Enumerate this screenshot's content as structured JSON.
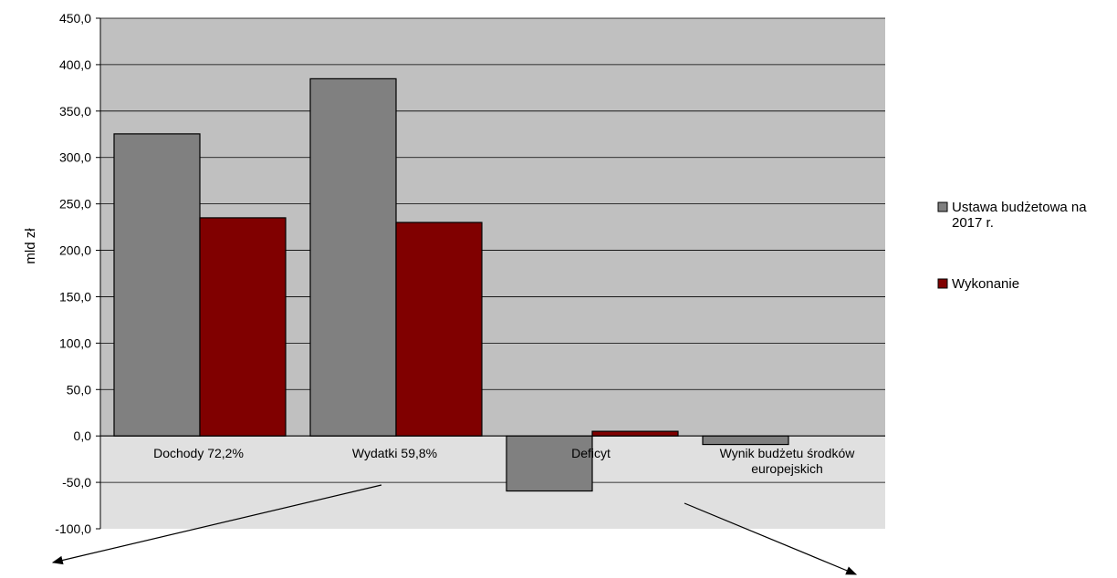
{
  "chart_data": {
    "type": "bar",
    "ylabel": "mld zł",
    "ylim": [
      -100,
      450
    ],
    "ytick_step": 50,
    "yticks": [
      "450,0",
      "400,0",
      "350,0",
      "300,0",
      "250,0",
      "200,0",
      "150,0",
      "100,0",
      "50,0",
      "0,0",
      "-50,0",
      "-100,0"
    ],
    "categories": [
      "Dochody 72,2%",
      "Wydatki 59,8%",
      "Deficyt",
      "Wynik budżetu środków europejskich"
    ],
    "category_label_lines": [
      [
        "Dochody 72,2%"
      ],
      [
        "Wydatki 59,8%"
      ],
      [
        "Deficyt"
      ],
      [
        "Wynik budżetu środków",
        "europejskich"
      ]
    ],
    "series": [
      {
        "name": "Ustawa budżetowa na 2017 r.",
        "legend_lines": [
          "Ustawa budżetowa na",
          "2017 r."
        ],
        "color": "#808080",
        "values": [
          325.4,
          384.8,
          -59.3,
          -9.2
        ]
      },
      {
        "name": "Wykonanie",
        "legend_lines": [
          "Wykonanie"
        ],
        "color": "#800000",
        "values": [
          235.0,
          230.0,
          5.0,
          0
        ]
      }
    ],
    "grid": true,
    "legend_position": "right",
    "plot_background_upper": "#c0c0c0",
    "plot_background_lower": "#e0e0e0",
    "annotations": "two arrows pointing outward from below the axis"
  }
}
